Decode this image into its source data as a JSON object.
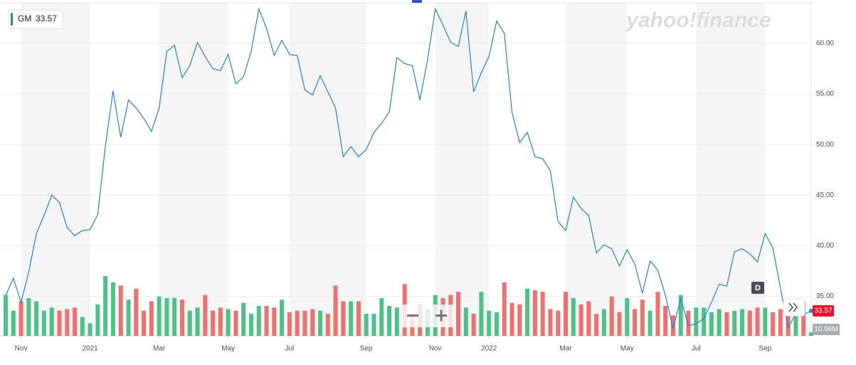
{
  "logo": "yahoo!finance",
  "period_button": "D",
  "volume_badge": "10.96M",
  "chart_data": {
    "type": "line",
    "categories": [
      null,
      null,
      "Nov",
      null,
      null,
      null,
      null,
      null,
      null,
      null,
      null,
      "2021",
      null,
      null,
      null,
      null,
      null,
      null,
      null,
      null,
      "Mar",
      null,
      null,
      null,
      null,
      null,
      null,
      null,
      null,
      "May",
      null,
      null,
      null,
      null,
      null,
      null,
      null,
      "Jul",
      null,
      null,
      null,
      null,
      null,
      null,
      null,
      null,
      null,
      "Sep",
      null,
      null,
      null,
      null,
      null,
      null,
      null,
      null,
      "Nov",
      null,
      null,
      null,
      null,
      null,
      null,
      "2022",
      null,
      null,
      null,
      null,
      null,
      null,
      null,
      null,
      null,
      "Mar",
      null,
      null,
      null,
      null,
      null,
      null,
      null,
      "May",
      null,
      null,
      null,
      null,
      null,
      null,
      null,
      null,
      "Jul",
      null,
      null,
      null,
      null,
      null,
      null,
      null,
      null,
      "Sep",
      null,
      null,
      null,
      null,
      null,
      null
    ],
    "series": [
      {
        "name": "GM",
        "color": "#1f82d8",
        "values": [
          35.1,
          36.8,
          34.4,
          37.4,
          41.2,
          43.0,
          45.0,
          44.3,
          41.8,
          41.0,
          41.5,
          41.6,
          43.1,
          49.9,
          55.3,
          50.7,
          54.4,
          53.6,
          52.6,
          51.3,
          53.6,
          59.2,
          59.8,
          56.6,
          57.8,
          60.1,
          58.7,
          57.5,
          57.3,
          58.9,
          56.0,
          56.7,
          59.2,
          63.4,
          61.5,
          58.8,
          60.3,
          58.9,
          58.8,
          55.4,
          54.9,
          56.8,
          55.2,
          53.6,
          48.8,
          49.8,
          48.8,
          49.5,
          51.2,
          52.1,
          53.2,
          58.6,
          58.0,
          57.8,
          54.4,
          58.4,
          63.4,
          61.8,
          60.1,
          59.7,
          63.2,
          55.2,
          57.1,
          58.7,
          62.2,
          61.0,
          53.2,
          50.2,
          51.2,
          48.8,
          48.6,
          47.4,
          42.4,
          41.5,
          44.8,
          43.7,
          43.0,
          39.3,
          40.1,
          39.7,
          38.0,
          39.6,
          38.2,
          35.3,
          38.5,
          37.6,
          35.1,
          31.8,
          34.8,
          32.1,
          32.3,
          32.8,
          34.4,
          36.2,
          36.0,
          39.4,
          39.7,
          39.2,
          38.4,
          41.2,
          39.8,
          35.8,
          31.9,
          33.3,
          33.2,
          33.57
        ]
      },
      {
        "name": "Volume",
        "type": "bar",
        "axis": "y2",
        "up_color": "#4cc287",
        "down_color": "#f0706e",
        "values": [
          130,
          80,
          110,
          120,
          110,
          80,
          90,
          80,
          85,
          90,
          60,
          40,
          100,
          190,
          170,
          160,
          115,
          150,
          80,
          110,
          125,
          120,
          120,
          115,
          80,
          90,
          130,
          80,
          90,
          85,
          80,
          105,
          70,
          95,
          95,
          90,
          115,
          75,
          80,
          80,
          85,
          80,
          70,
          160,
          110,
          110,
          110,
          70,
          70,
          120,
          95,
          90,
          165,
          70,
          100,
          85,
          130,
          120,
          130,
          140,
          90,
          70,
          140,
          80,
          75,
          170,
          105,
          100,
          150,
          145,
          140,
          85,
          80,
          140,
          120,
          100,
          110,
          70,
          85,
          125,
          75,
          120,
          85,
          115,
          80,
          140,
          95,
          65,
          130,
          80,
          90,
          90,
          75,
          85,
          75,
          80,
          85,
          80,
          90,
          90,
          75,
          85,
          105,
          100,
          110,
          10.96
        ]
      }
    ],
    "ylim": [
      31.1,
      64.0
    ],
    "yticks": [
      {
        "value": 35,
        "label": "35.00"
      },
      {
        "value": 40,
        "label": "40.00"
      },
      {
        "value": 45,
        "label": "45.00"
      },
      {
        "value": 50,
        "label": "50.00"
      },
      {
        "value": 55,
        "label": "55.00"
      },
      {
        "value": 60,
        "label": "60.00"
      }
    ],
    "y2lim": [
      0,
      240
    ],
    "grid": true
  }
}
